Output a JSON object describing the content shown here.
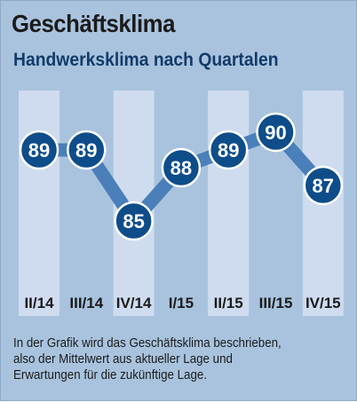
{
  "title": "Geschäftsklima",
  "subtitle": "Handwerksklima nach Quartalen",
  "note": {
    "lines": [
      "In der Grafik wird das Geschäftsklima beschrieben,",
      "also der Mittelwert aus aktueller Lage und",
      "Erwartungen für die zukünftige Lage."
    ]
  },
  "colors": {
    "background": "#a9c3de",
    "column_band": "#cfdcef",
    "line": "#4a7fb9",
    "marker": "#0e4d8a",
    "marker_outline": "#ffffff",
    "title": "#1b1b1b",
    "subtitle": "#123b6a"
  },
  "chart_data": {
    "type": "line",
    "categories": [
      "II/14",
      "III/14",
      "IV/14",
      "I/15",
      "II/15",
      "III/15",
      "IV/15"
    ],
    "values": [
      89,
      89,
      85,
      88,
      89,
      90,
      87
    ],
    "data_labels": [
      "89",
      "89",
      "85",
      "88",
      "89",
      "90",
      "87"
    ],
    "title": "Geschäftsklima",
    "subtitle": "Handwerksklima nach Quartalen",
    "xlabel": "",
    "ylabel": "",
    "ylim": [
      84,
      91
    ],
    "grid": false,
    "legend": "none"
  }
}
